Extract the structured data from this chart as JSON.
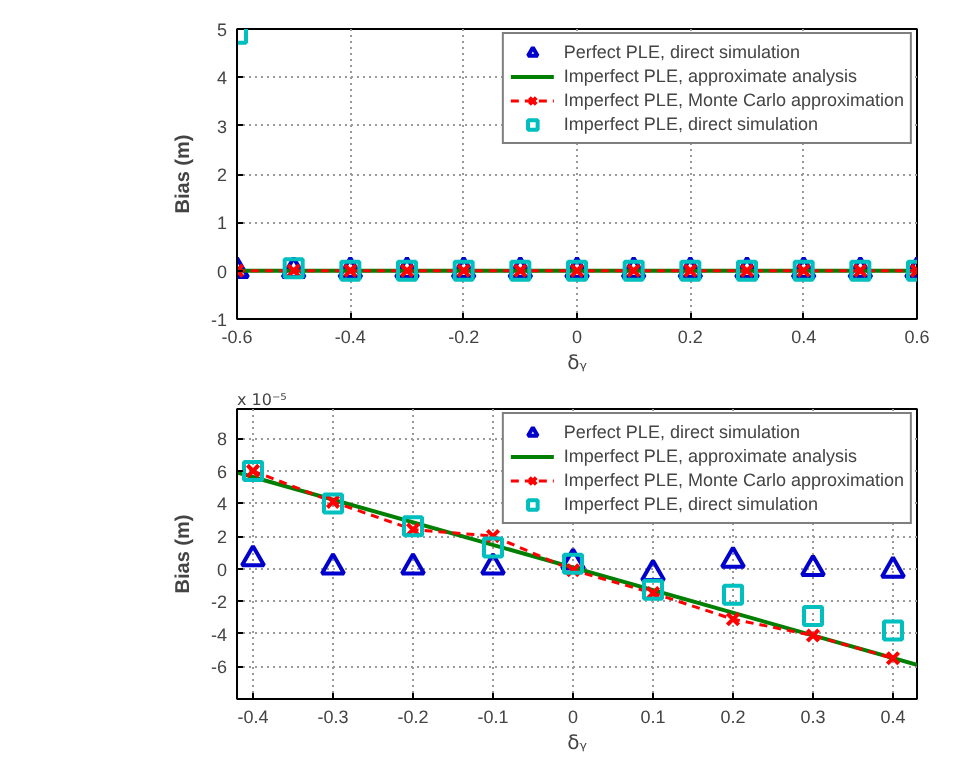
{
  "chart_data": [
    {
      "type": "line",
      "ylabel": "Bias (m)",
      "xlabel": "δᵧ",
      "xlim": [
        -0.6,
        0.6
      ],
      "ylim": [
        -1,
        5
      ],
      "xticks": [
        -0.6,
        -0.4,
        -0.2,
        0,
        0.2,
        0.4,
        0.6
      ],
      "yticks": [
        -1,
        0,
        1,
        2,
        3,
        4,
        5
      ],
      "grid": true,
      "legend": "top right",
      "series": [
        {
          "name": "Perfect PLE, direct simulation",
          "type": "scatter",
          "marker": "triangle",
          "color": "#0000cc",
          "x": [
            -0.6,
            -0.5,
            -0.4,
            -0.3,
            -0.2,
            -0.1,
            0,
            0.1,
            0.2,
            0.3,
            0.4,
            0.5,
            0.6
          ],
          "values": [
            0,
            0,
            0,
            0,
            0,
            0,
            0,
            0,
            0,
            0,
            0,
            0,
            0
          ]
        },
        {
          "name": "Imperfect PLE, approximate analysis",
          "marker": "none",
          "line_style": "solid",
          "color": "#007f00",
          "x": [
            -0.6,
            0.6
          ],
          "values": [
            0,
            0
          ]
        },
        {
          "name": "Imperfect PLE, Monte Carlo approximation",
          "marker": "cross",
          "line_style": "dashed",
          "color": "#ff0000",
          "x": [
            -0.6,
            -0.5,
            -0.4,
            -0.3,
            -0.2,
            -0.1,
            0,
            0.1,
            0.2,
            0.3,
            0.4,
            0.5,
            0.6
          ],
          "values": [
            0,
            0,
            0,
            0,
            0,
            0,
            0,
            0,
            0,
            0,
            0,
            0,
            0
          ]
        },
        {
          "name": "Imperfect PLE, direct simulation",
          "type": "scatter",
          "marker": "square",
          "color": "#00bfbf",
          "x": [
            -0.6,
            -0.5,
            -0.4,
            -0.3,
            -0.2,
            -0.1,
            0,
            0.1,
            0.2,
            0.3,
            0.4,
            0.5,
            0.6
          ],
          "values": [
            4.9,
            0.05,
            0,
            0,
            0,
            0,
            0,
            0,
            0,
            0,
            0,
            0,
            0
          ]
        }
      ]
    },
    {
      "type": "line",
      "ylabel": "Bias (m)",
      "xlabel": "δᵧ",
      "annotations": [
        "x 10⁻⁵"
      ],
      "xlim": [
        -0.42,
        0.43
      ],
      "ylim": [
        -8,
        9.8
      ],
      "xticks": [
        -0.4,
        -0.3,
        -0.2,
        -0.1,
        0,
        0.1,
        0.2,
        0.3,
        0.4
      ],
      "yticks": [
        -6,
        -4,
        -2,
        0,
        2,
        4,
        6,
        8
      ],
      "grid": true,
      "legend": "top right",
      "series": [
        {
          "name": "Perfect PLE, direct simulation",
          "type": "scatter",
          "marker": "triangle",
          "color": "#0000cc",
          "x": [
            -0.4,
            -0.3,
            -0.2,
            -0.1,
            0,
            0.1,
            0.2,
            0.3,
            0.4
          ],
          "values": [
            0.6,
            0.1,
            0.1,
            0.1,
            0.4,
            -0.3,
            0.5,
            0.0,
            -0.1
          ]
        },
        {
          "name": "Imperfect PLE, approximate analysis",
          "marker": "none",
          "line_style": "solid",
          "color": "#007f00",
          "x": [
            -0.42,
            0.43
          ],
          "values": [
            5.9,
            -5.9
          ]
        },
        {
          "name": "Imperfect PLE, Monte Carlo approximation",
          "marker": "cross",
          "line_style": "dashed",
          "color": "#ff0000",
          "x": [
            -0.4,
            -0.3,
            -0.2,
            -0.1,
            0,
            0.1,
            0.2,
            0.3,
            0.4
          ],
          "values": [
            6.0,
            4.1,
            2.4,
            2.0,
            -0.1,
            -1.5,
            -3.1,
            -4.1,
            -5.5
          ]
        },
        {
          "name": "Imperfect PLE, direct simulation",
          "type": "scatter",
          "marker": "square",
          "color": "#00bfbf",
          "x": [
            -0.4,
            -0.3,
            -0.2,
            -0.1,
            0,
            0.1,
            0.2,
            0.3,
            0.4
          ],
          "values": [
            6.0,
            4.0,
            2.6,
            1.3,
            0.3,
            -1.3,
            -1.6,
            -2.9,
            -3.8
          ]
        }
      ]
    }
  ]
}
